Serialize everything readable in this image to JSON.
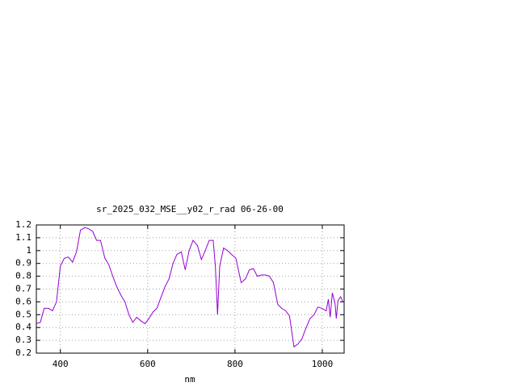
{
  "chart_data": {
    "type": "line",
    "title": "sr_2025_032_MSE__y02_r_rad 06-26-00",
    "x_label": "nm",
    "xlim": [
      345,
      1050
    ],
    "xticks": [
      400,
      600,
      800,
      1000
    ],
    "ylim": [
      0.2,
      1.2
    ],
    "yticks": [
      0.2,
      0.3,
      0.4,
      0.5,
      0.6,
      0.7,
      0.8,
      0.9,
      1,
      1.1,
      1.2
    ],
    "grid": true,
    "series": [
      {
        "color": "#9400d3",
        "x": [
          345,
          354,
          363,
          373,
          382,
          391,
          400,
          409,
          418,
          428,
          437,
          446,
          456,
          465,
          474,
          483,
          492,
          502,
          511,
          520,
          529,
          539,
          548,
          557,
          566,
          575,
          585,
          594,
          603,
          612,
          621,
          630,
          640,
          649,
          658,
          667,
          677,
          686,
          695,
          704,
          714,
          723,
          732,
          741,
          750,
          755,
          760,
          765,
          774,
          783,
          792,
          802,
          814,
          824,
          833,
          842,
          851,
          861,
          870,
          879,
          888,
          898,
          907,
          916,
          925,
          935,
          944,
          953,
          962,
          972,
          981,
          990,
          999,
          1009,
          1014,
          1018,
          1023,
          1029,
          1032,
          1036,
          1042,
          1047
        ],
        "values": [
          0.43,
          0.44,
          0.55,
          0.55,
          0.53,
          0.6,
          0.88,
          0.94,
          0.95,
          0.91,
          0.99,
          1.16,
          1.18,
          1.17,
          1.15,
          1.08,
          1.08,
          0.94,
          0.89,
          0.8,
          0.72,
          0.65,
          0.6,
          0.5,
          0.44,
          0.48,
          0.45,
          0.43,
          0.47,
          0.52,
          0.55,
          0.63,
          0.72,
          0.78,
          0.9,
          0.97,
          0.99,
          0.85,
          1.0,
          1.08,
          1.04,
          0.93,
          1.0,
          1.08,
          1.08,
          0.88,
          0.5,
          0.88,
          1.02,
          1.0,
          0.97,
          0.94,
          0.75,
          0.78,
          0.85,
          0.86,
          0.8,
          0.81,
          0.81,
          0.8,
          0.75,
          0.58,
          0.55,
          0.53,
          0.49,
          0.25,
          0.27,
          0.31,
          0.39,
          0.47,
          0.5,
          0.56,
          0.55,
          0.53,
          0.62,
          0.48,
          0.67,
          0.59,
          0.47,
          0.61,
          0.64,
          0.6
        ]
      }
    ]
  }
}
